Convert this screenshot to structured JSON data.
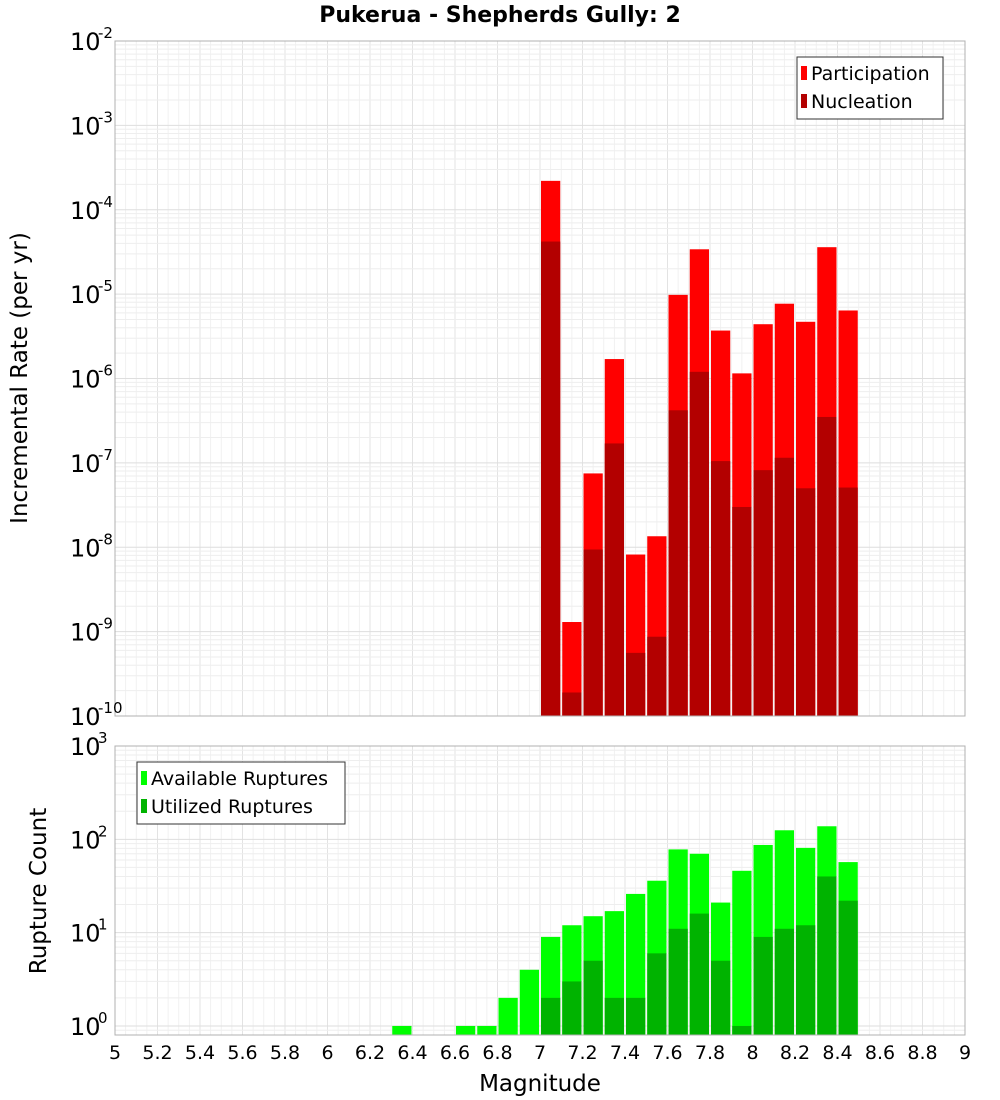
{
  "chart_data": [
    {
      "type": "bar",
      "title": "Pukerua - Shepherds Gully: 2",
      "xlabel": "",
      "ylabel": "Incremental Rate (per yr)",
      "yscale": "log",
      "ylim": [
        1e-10,
        0.01
      ],
      "xlim": [
        5,
        9
      ],
      "y_tick_labels": [
        {
          "base": "10",
          "exp": "-10"
        },
        {
          "base": "10",
          "exp": "-9"
        },
        {
          "base": "10",
          "exp": "-8"
        },
        {
          "base": "10",
          "exp": "-7"
        },
        {
          "base": "10",
          "exp": "-6"
        },
        {
          "base": "10",
          "exp": "-5"
        },
        {
          "base": "10",
          "exp": "-4"
        },
        {
          "base": "10",
          "exp": "-3"
        },
        {
          "base": "10",
          "exp": "-2"
        }
      ],
      "grid": true,
      "legend_position": "top-right",
      "bar_width": 0.1,
      "x": [
        7.05,
        7.15,
        7.25,
        7.35,
        7.45,
        7.55,
        7.65,
        7.75,
        7.85,
        7.95,
        8.05,
        8.15,
        8.25,
        8.35,
        8.45
      ],
      "series": [
        {
          "name": "Participation",
          "color": "#ff0000",
          "values": [
            0.00022,
            1.3e-09,
            7.5e-08,
            1.7e-06,
            8.2e-09,
            1.35e-08,
            9.8e-06,
            3.4e-05,
            3.7e-06,
            1.15e-06,
            4.4e-06,
            7.7e-06,
            4.7e-06,
            3.6e-05,
            6.4e-06
          ]
        },
        {
          "name": "Nucleation",
          "color": "#b30000",
          "values": [
            4.2e-05,
            1.9e-10,
            9.4e-09,
            1.7e-07,
            5.6e-10,
            8.7e-10,
            4.2e-07,
            1.2e-06,
            1.05e-07,
            3e-08,
            8.2e-08,
            1.15e-07,
            5e-08,
            3.5e-07,
            5.1e-08
          ]
        }
      ]
    },
    {
      "type": "bar",
      "title": "",
      "xlabel": "Magnitude",
      "ylabel": "Rupture Count",
      "yscale": "log",
      "ylim": [
        0.8,
        1000
      ],
      "xlim": [
        5,
        9
      ],
      "x_tick_labels": [
        "5",
        "5.2",
        "5.4",
        "5.6",
        "5.8",
        "6",
        "6.2",
        "6.4",
        "6.6",
        "6.8",
        "7",
        "7.2",
        "7.4",
        "7.6",
        "7.8",
        "8",
        "8.2",
        "8.4",
        "8.6",
        "8.8",
        "9"
      ],
      "y_tick_labels": [
        {
          "base": "10",
          "exp": "0"
        },
        {
          "base": "10",
          "exp": "1"
        },
        {
          "base": "10",
          "exp": "2"
        },
        {
          "base": "10",
          "exp": "3"
        }
      ],
      "grid": true,
      "legend_position": "top-left",
      "bar_width": 0.1,
      "x": [
        6.35,
        6.65,
        6.75,
        6.85,
        6.95,
        7.05,
        7.15,
        7.25,
        7.35,
        7.45,
        7.55,
        7.65,
        7.75,
        7.85,
        7.95,
        8.05,
        8.15,
        8.25,
        8.35,
        8.45
      ],
      "series": [
        {
          "name": "Available Ruptures",
          "color": "#00ff00",
          "values": [
            1,
            1,
            1,
            2,
            4,
            9,
            12,
            15,
            17,
            26,
            36,
            78,
            70,
            21,
            46,
            87,
            125,
            81,
            138,
            57
          ]
        },
        {
          "name": "Utilized Ruptures",
          "color": "#00b300",
          "values": [
            0,
            0,
            0,
            0,
            0,
            2,
            3,
            5,
            2,
            2,
            6,
            11,
            16,
            5,
            1,
            9,
            11,
            12,
            40,
            22
          ]
        }
      ]
    }
  ]
}
